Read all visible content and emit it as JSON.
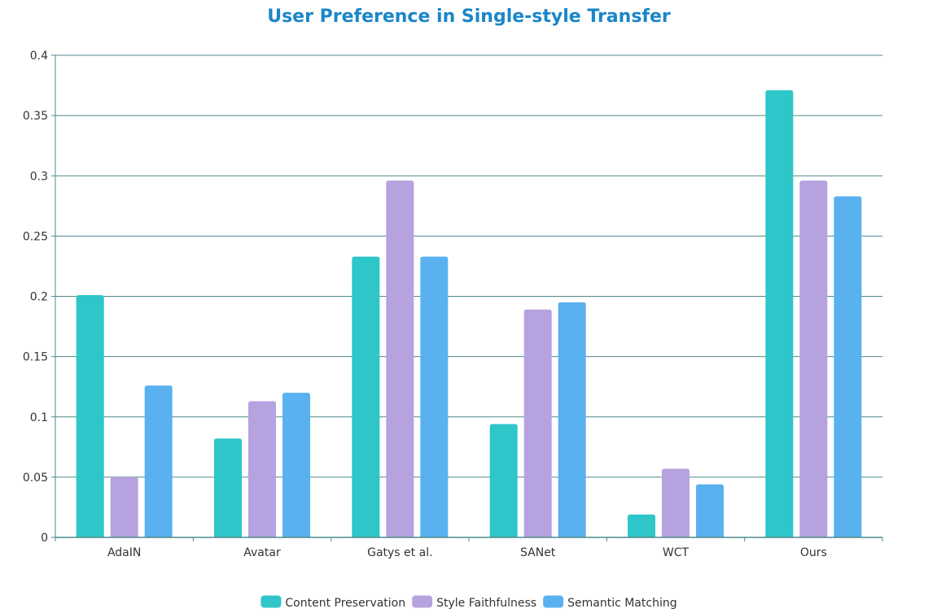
{
  "colors": {
    "title": "#1a86c8",
    "grid": "#4e8a8c",
    "axis": "#4e8a8c"
  },
  "chart_data": {
    "type": "bar",
    "title": "User Preference in Single-style Transfer",
    "xlabel": "",
    "ylabel": "",
    "ylim": [
      0,
      0.4
    ],
    "yticks": [
      "0",
      "0.05",
      "0.1",
      "0.15",
      "0.2",
      "0.25",
      "0.3",
      "0.35",
      "0.4"
    ],
    "grid": true,
    "legend_position": "bottom-center",
    "categories": [
      "AdaIN",
      "Avatar",
      "Gatys et al.",
      "SANet",
      "WCT",
      "Ours"
    ],
    "series": [
      {
        "name": "Content Preservation",
        "color": "#2ec6c8",
        "values": [
          0.201,
          0.082,
          0.233,
          0.094,
          0.019,
          0.371
        ]
      },
      {
        "name": "Style Faithfulness",
        "color": "#b6a2de",
        "values": [
          0.05,
          0.113,
          0.296,
          0.189,
          0.057,
          0.296
        ]
      },
      {
        "name": "Semantic Matching",
        "color": "#5ab1ef",
        "values": [
          0.126,
          0.12,
          0.233,
          0.195,
          0.044,
          0.283
        ]
      }
    ]
  }
}
